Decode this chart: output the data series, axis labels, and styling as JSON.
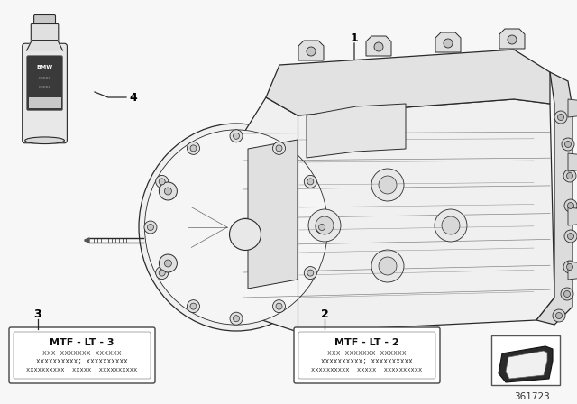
{
  "bg_color": "#f7f7f7",
  "diagram_number": "361723",
  "label1_num": "1",
  "label2_num": "2",
  "label2_title": "MTF - LT - 2",
  "label2_line1": "xxx xxxxxxx xxxxxx",
  "label2_line2": "xxxxxxxxxx; xxxxxxxxxx",
  "label2_line3": "xxxxxxxxxx  xxxxx  xxxxxxxxxx",
  "label3_num": "3",
  "label3_title": "MTF - LT - 3",
  "label3_line1": "xxx xxxxxxx xxxxxx",
  "label3_line2": "xxxxxxxxxx; xxxxxxxxxx",
  "label3_line3": "xxxxxxxxxx  xxxxx  xxxxxxxxxx",
  "label4_num": "4",
  "lc": "#2a2a2a",
  "lc_light": "#999999",
  "fill_main": "#f2f2f2",
  "fill_dark": "#d8d8d8",
  "fill_mid": "#e8e8e8"
}
